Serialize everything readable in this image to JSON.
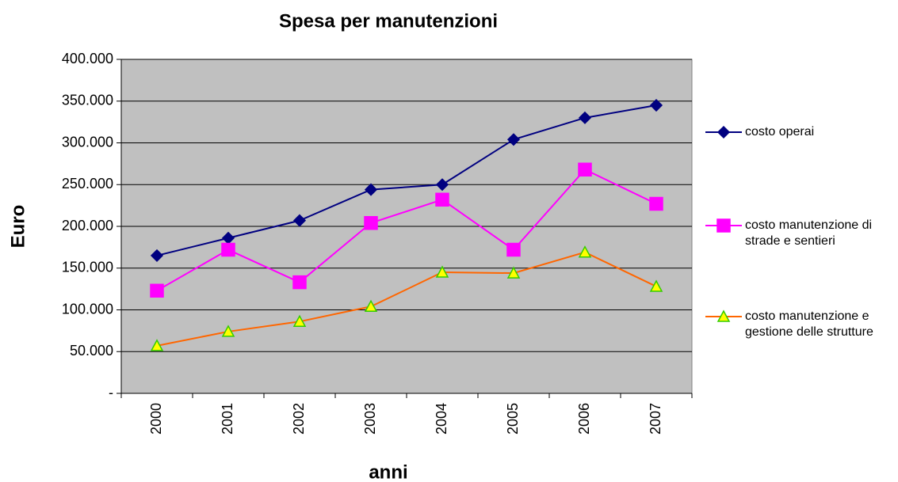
{
  "chart_data": {
    "type": "line",
    "title": "Spesa per manutenzioni",
    "xlabel": "anni",
    "ylabel": "Euro",
    "categories": [
      "2000",
      "2001",
      "2002",
      "2003",
      "2004",
      "2005",
      "2006",
      "2007"
    ],
    "series": [
      {
        "name": "costo operai",
        "color": "#000080",
        "marker": "diamond",
        "marker_fill": "#000080",
        "marker_stroke": "#000080",
        "values": [
          165000,
          186000,
          207000,
          244000,
          250000,
          304000,
          330000,
          345000
        ]
      },
      {
        "name": "costo manutenzione di strade e sentieri",
        "color": "#ff00ff",
        "marker": "square",
        "marker_fill": "#ff00ff",
        "marker_stroke": "#ff00ff",
        "values": [
          123000,
          172000,
          133000,
          204000,
          232000,
          172000,
          268000,
          227000
        ]
      },
      {
        "name": "costo manutenzione e gestione delle strutture",
        "color": "#ff6600",
        "marker": "triangle",
        "marker_fill": "#ffff00",
        "marker_stroke": "#33cc00",
        "values": [
          57000,
          74000,
          86000,
          104000,
          145000,
          144000,
          169000,
          128000
        ]
      }
    ],
    "ylim": [
      0,
      400000
    ],
    "yticks": [
      {
        "value": 0,
        "label": "-"
      },
      {
        "value": 50000,
        "label": "50.000"
      },
      {
        "value": 100000,
        "label": "100.000"
      },
      {
        "value": 150000,
        "label": "150.000"
      },
      {
        "value": 200000,
        "label": "200.000"
      },
      {
        "value": 250000,
        "label": "250.000"
      },
      {
        "value": 300000,
        "label": "300.000"
      },
      {
        "value": 350000,
        "label": "350.000"
      },
      {
        "value": 400000,
        "label": "400.000"
      }
    ],
    "grid": true,
    "legend": "right",
    "plot_background": "#c0c0c0"
  }
}
